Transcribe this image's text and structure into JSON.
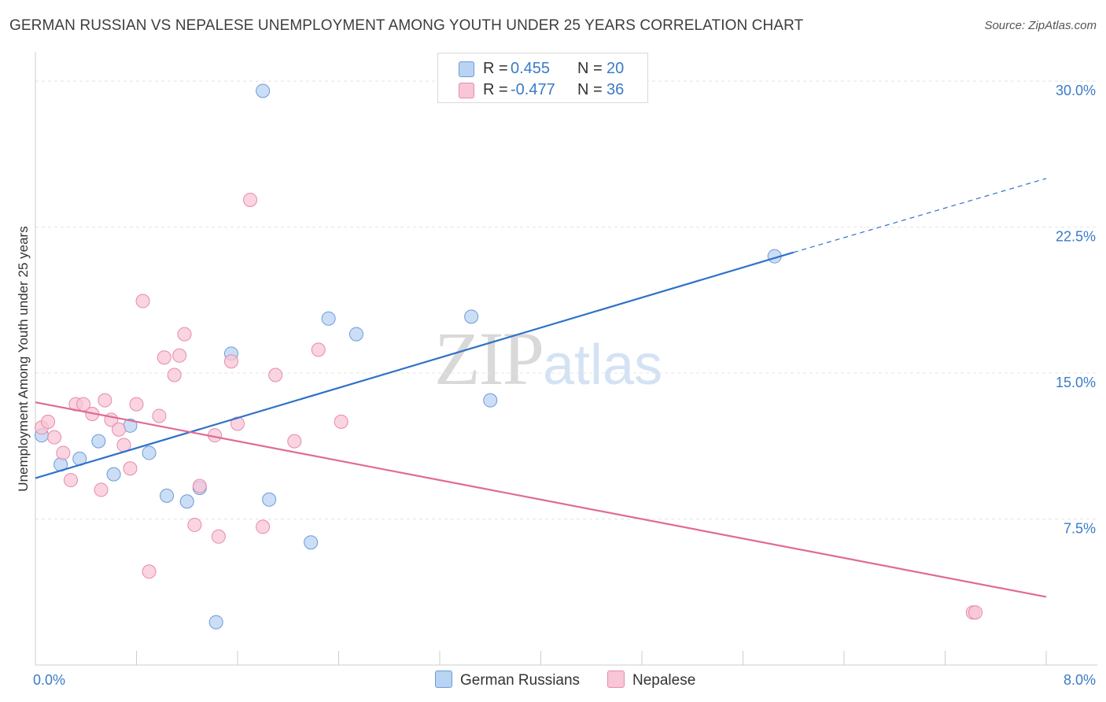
{
  "chart_data": {
    "type": "scatter",
    "title": "GERMAN RUSSIAN VS NEPALESE UNEMPLOYMENT AMONG YOUTH UNDER 25 YEARS CORRELATION CHART",
    "source": "Source: ZipAtlas.com",
    "ylabel": "Unemployment Among Youth under 25 years",
    "xlim": [
      0,
      8
    ],
    "ylim": [
      0,
      31.5
    ],
    "x_tick_labels": [
      "0.0%",
      "8.0%"
    ],
    "y_ticks": [
      7.5,
      15.0,
      22.5,
      30.0
    ],
    "y_tick_labels": [
      "7.5%",
      "15.0%",
      "22.5%",
      "30.0%"
    ],
    "series": [
      {
        "name": "German Russians",
        "R_label": "R =",
        "R": "0.455",
        "N_label": "N =",
        "N": "20",
        "fill": "#b9d3f3",
        "stroke": "#6a9bd8",
        "line": "#2f72c9",
        "trend": {
          "x0": 0.0,
          "y0": 9.6,
          "x1": 6.0,
          "y1": 21.2,
          "dash_x1": 8.0,
          "dash_y1": 25.0
        },
        "points": [
          [
            0.05,
            11.8
          ],
          [
            0.2,
            10.3
          ],
          [
            0.35,
            10.6
          ],
          [
            0.5,
            11.5
          ],
          [
            0.62,
            9.8
          ],
          [
            0.75,
            12.3
          ],
          [
            0.9,
            10.9
          ],
          [
            1.04,
            8.7
          ],
          [
            1.2,
            8.4
          ],
          [
            1.3,
            9.1
          ],
          [
            1.55,
            16.0
          ],
          [
            1.8,
            29.5
          ],
          [
            1.85,
            8.5
          ],
          [
            2.18,
            6.3
          ],
          [
            2.32,
            17.8
          ],
          [
            2.54,
            17.0
          ],
          [
            3.45,
            17.9
          ],
          [
            3.6,
            13.6
          ],
          [
            5.85,
            21.0
          ],
          [
            1.43,
            2.2
          ]
        ]
      },
      {
        "name": "Nepalese",
        "R_label": "R =",
        "R": "-0.477",
        "N_label": "N =",
        "N": "36",
        "fill": "#f8c6d6",
        "stroke": "#e88aa8",
        "line": "#e06a96",
        "trend": {
          "x0": 0.0,
          "y0": 13.5,
          "x1": 8.0,
          "y1": 3.5
        },
        "points": [
          [
            0.05,
            12.2
          ],
          [
            0.1,
            12.5
          ],
          [
            0.15,
            11.7
          ],
          [
            0.22,
            10.9
          ],
          [
            0.28,
            9.5
          ],
          [
            0.32,
            13.4
          ],
          [
            0.38,
            13.4
          ],
          [
            0.45,
            12.9
          ],
          [
            0.52,
            9.0
          ],
          [
            0.55,
            13.6
          ],
          [
            0.6,
            12.6
          ],
          [
            0.66,
            12.1
          ],
          [
            0.7,
            11.3
          ],
          [
            0.75,
            10.1
          ],
          [
            0.8,
            13.4
          ],
          [
            0.85,
            18.7
          ],
          [
            0.9,
            4.8
          ],
          [
            0.98,
            12.8
          ],
          [
            1.02,
            15.8
          ],
          [
            1.1,
            14.9
          ],
          [
            1.14,
            15.9
          ],
          [
            1.18,
            17.0
          ],
          [
            1.26,
            7.2
          ],
          [
            1.3,
            9.2
          ],
          [
            1.42,
            11.8
          ],
          [
            1.45,
            6.6
          ],
          [
            1.55,
            15.6
          ],
          [
            1.6,
            12.4
          ],
          [
            1.7,
            23.9
          ],
          [
            1.8,
            7.1
          ],
          [
            1.9,
            14.9
          ],
          [
            2.05,
            11.5
          ],
          [
            2.24,
            16.2
          ],
          [
            2.42,
            12.5
          ],
          [
            7.42,
            2.7
          ],
          [
            7.44,
            2.7
          ]
        ]
      }
    ]
  },
  "watermark": {
    "zip": "ZIP",
    "atlas": "atlas"
  }
}
